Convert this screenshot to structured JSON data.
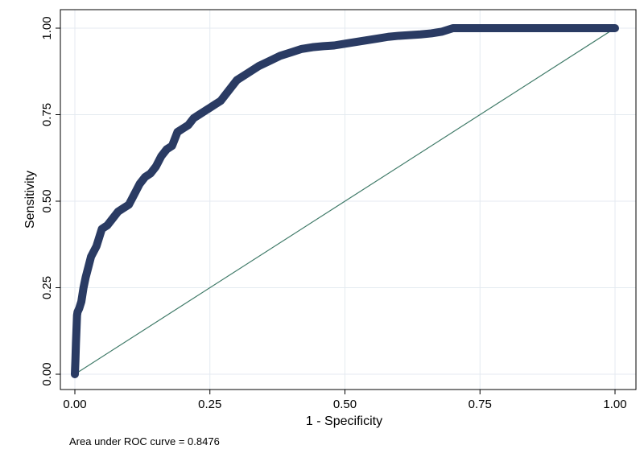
{
  "chart_data": {
    "type": "line",
    "xlabel": "1 - Specificity",
    "ylabel": "Sensitivity",
    "xlim": [
      0,
      1
    ],
    "ylim": [
      0,
      1
    ],
    "x_ticks": [
      "0.00",
      "0.25",
      "0.50",
      "0.75",
      "1.00"
    ],
    "y_ticks": [
      "0.00",
      "0.25",
      "0.50",
      "0.75",
      "1.00"
    ],
    "grid": true,
    "note": "Area under ROC curve = 0.8476",
    "colors": {
      "roc": "#2a3b63",
      "reference": "#3f7a68",
      "grid": "#e4eaf0",
      "frame": "#000000"
    },
    "series": [
      {
        "values_x": [
          0,
          0.001,
          0.002,
          0.003,
          0.004,
          0.005,
          0.008,
          0.012,
          0.016,
          0.02,
          0.025,
          0.03,
          0.04,
          0.05,
          0.06,
          0.07,
          0.08,
          0.09,
          0.1,
          0.11,
          0.12,
          0.13,
          0.14,
          0.15,
          0.16,
          0.17,
          0.18,
          0.19,
          0.2,
          0.21,
          0.22,
          0.23,
          0.24,
          0.25,
          0.26,
          0.27,
          0.28,
          0.29,
          0.3,
          0.32,
          0.34,
          0.36,
          0.38,
          0.4,
          0.42,
          0.44,
          0.46,
          0.48,
          0.5,
          0.52,
          0.54,
          0.56,
          0.58,
          0.6,
          0.62,
          0.64,
          0.66,
          0.68,
          0.7,
          0.75,
          0.8,
          0.85,
          0.9,
          0.95,
          1.0
        ],
        "values_y": [
          0,
          0.04,
          0.09,
          0.13,
          0.17,
          0.18,
          0.19,
          0.21,
          0.25,
          0.28,
          0.31,
          0.34,
          0.37,
          0.42,
          0.43,
          0.45,
          0.47,
          0.48,
          0.49,
          0.52,
          0.55,
          0.57,
          0.58,
          0.6,
          0.63,
          0.65,
          0.66,
          0.7,
          0.71,
          0.72,
          0.74,
          0.75,
          0.76,
          0.77,
          0.78,
          0.79,
          0.81,
          0.83,
          0.85,
          0.87,
          0.89,
          0.905,
          0.92,
          0.93,
          0.94,
          0.945,
          0.948,
          0.95,
          0.955,
          0.96,
          0.965,
          0.97,
          0.975,
          0.978,
          0.98,
          0.982,
          0.985,
          0.99,
          1.0,
          1.0,
          1.0,
          1.0,
          1.0,
          1.0,
          1.0
        ]
      },
      {
        "values_x": [
          0,
          1
        ],
        "values_y": [
          0,
          1
        ]
      }
    ]
  }
}
